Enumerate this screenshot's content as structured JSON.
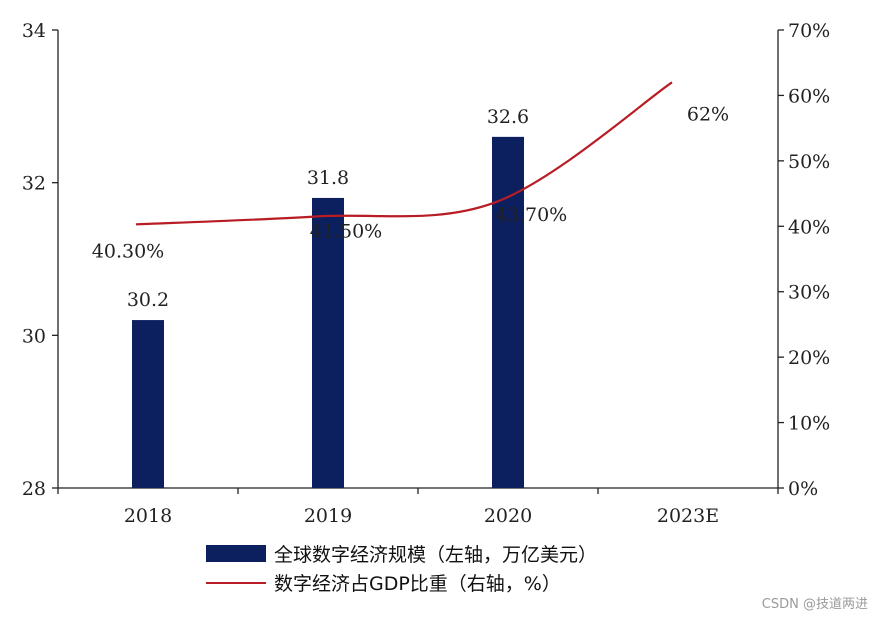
{
  "chart_data": {
    "type": "bar",
    "categories": [
      "2018",
      "2019",
      "2020",
      "2023E"
    ],
    "series": [
      {
        "name": "全球数字经济规模（左轴，万亿美元）",
        "type": "bar",
        "axis": "left",
        "values": [
          30.2,
          31.8,
          32.6,
          null
        ],
        "labels": [
          "30.2",
          "31.8",
          "32.6",
          ""
        ],
        "color": "#0c1f5e"
      },
      {
        "name": "数字经济占GDP比重（右轴，%）",
        "type": "line",
        "axis": "right",
        "values": [
          40.3,
          41.5,
          43.7,
          62
        ],
        "labels": [
          "40.30%",
          "41.50%",
          "43.70%",
          "62%"
        ],
        "color": "#b81c24"
      }
    ],
    "left_axis": {
      "ylim": [
        28,
        34
      ],
      "ticks": [
        "28",
        "30",
        "32",
        "34"
      ]
    },
    "right_axis": {
      "ylim": [
        0,
        70
      ],
      "ticks": [
        "0%",
        "10%",
        "20%",
        "30%",
        "40%",
        "50%",
        "60%",
        "70%"
      ]
    },
    "grid": false,
    "legend_position": "bottom"
  },
  "watermark": "CSDN @技道两进"
}
